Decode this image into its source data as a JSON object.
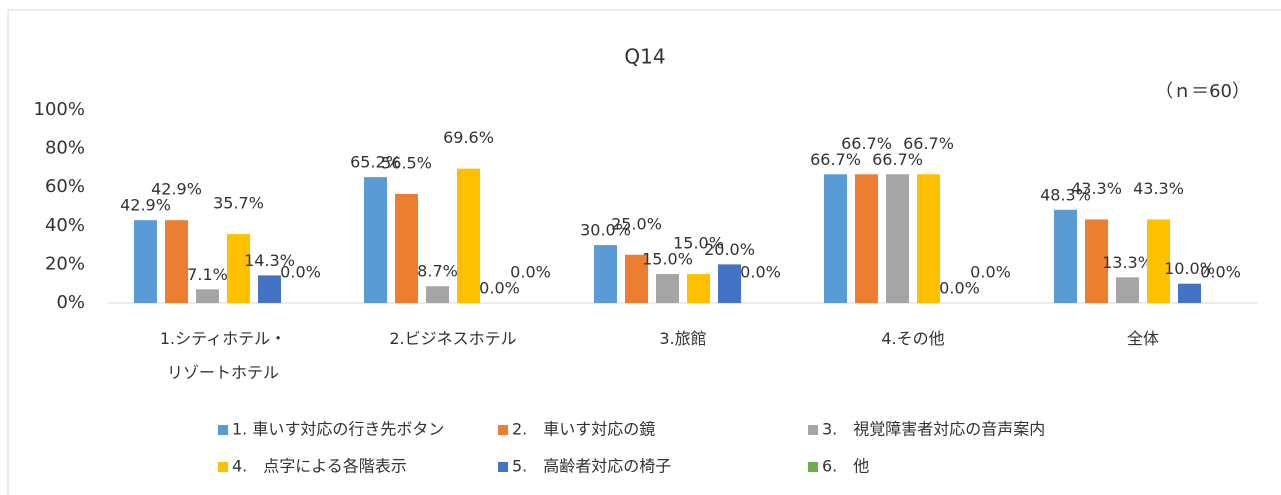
{
  "chart_data": {
    "type": "bar",
    "title": "Q14",
    "annotation": "（ｎ＝60）",
    "categories": [
      "1.シティホテル・\nリゾートホテル",
      "2.ビジネスホテル",
      "3.旅館",
      "4.その他",
      "全体"
    ],
    "series": [
      {
        "name": "1. 車いす対応の行き先ボタン",
        "color": "#5b9bd5",
        "values": [
          42.9,
          65.2,
          30.0,
          66.7,
          48.3
        ],
        "value_labels": [
          "42.9%",
          "65.2%",
          "30.0%",
          "66.7%",
          "48.3%"
        ]
      },
      {
        "name": "2.　車いす対応の鏡",
        "color": "#ed7d31",
        "values": [
          42.9,
          56.5,
          25.0,
          66.7,
          43.3
        ],
        "value_labels": [
          "42.9%",
          "56.5%",
          "25.0%",
          "66.7%",
          "43.3%"
        ]
      },
      {
        "name": "3.　視覚障害者対応の音声案内",
        "color": "#a5a5a5",
        "values": [
          7.1,
          8.7,
          15.0,
          66.7,
          13.3
        ],
        "value_labels": [
          "7.1%",
          "8.7%",
          "15.0%",
          "66.7%",
          "13.3%"
        ]
      },
      {
        "name": "4.　点字による各階表示",
        "color": "#ffc000",
        "values": [
          35.7,
          69.6,
          15.0,
          66.7,
          43.3
        ],
        "value_labels": [
          "35.7%",
          "69.6%",
          "15.0%",
          "66.7%",
          "43.3%"
        ]
      },
      {
        "name": "5.　高齢者対応の椅子",
        "color": "#4472c4",
        "values": [
          14.3,
          0.0,
          20.0,
          0.0,
          10.0
        ],
        "value_labels": [
          "14.3%",
          "0.0%",
          "20.0%",
          "0.0%",
          "10.0%"
        ]
      },
      {
        "name": "6.　他",
        "color": "#70ad47",
        "values": [
          0.0,
          0.0,
          0.0,
          0.0,
          0.0
        ],
        "value_labels": [
          "0.0%",
          "0.0%",
          "0.0%",
          "0.0%",
          "0.0%"
        ]
      }
    ],
    "ylim": [
      0,
      100
    ],
    "yticks": [
      {
        "value": 0,
        "label": "0%"
      },
      {
        "value": 20,
        "label": "20%"
      },
      {
        "value": 40,
        "label": "40%"
      },
      {
        "value": 60,
        "label": "60%"
      },
      {
        "value": 80,
        "label": "80%"
      },
      {
        "value": 100,
        "label": "100%"
      }
    ],
    "grid": false
  }
}
